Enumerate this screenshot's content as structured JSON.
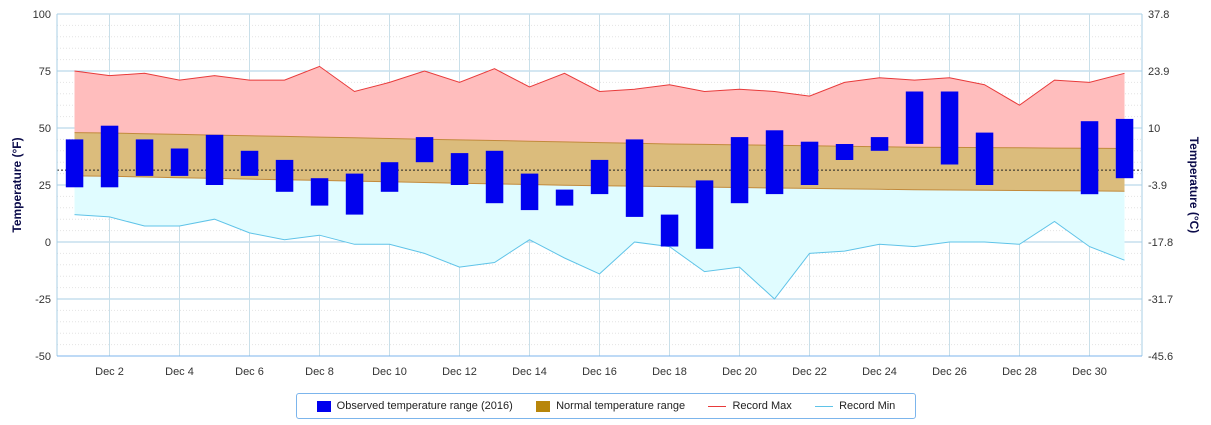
{
  "chart_data": {
    "type": "range-bar-band",
    "axes": {
      "left": {
        "title": "Temperature (°F)",
        "min": -50,
        "max": 100,
        "ticks": [
          100,
          75,
          50,
          25,
          0,
          -25,
          -50
        ]
      },
      "right": {
        "title": "Temperature (°C)",
        "min": -45.6,
        "max": 37.8,
        "tick_labels": [
          "37.8",
          "23.9",
          "10",
          "-3.9",
          "-17.8",
          "-31.7",
          "-45.6"
        ]
      },
      "x_tick_labels": [
        "Dec 2",
        "Dec 4",
        "Dec 6",
        "Dec 8",
        "Dec 10",
        "Dec 12",
        "Dec 14",
        "Dec 16",
        "Dec 18",
        "Dec 20",
        "Dec 22",
        "Dec 24",
        "Dec 26",
        "Dec 28",
        "Dec 30"
      ],
      "x_tick_days": [
        2,
        4,
        6,
        8,
        10,
        12,
        14,
        16,
        18,
        20,
        22,
        24,
        26,
        28,
        30
      ],
      "x_range_days": [
        0.5,
        31.5
      ],
      "grid": true
    },
    "days": [
      1,
      2,
      3,
      4,
      5,
      6,
      7,
      8,
      9,
      10,
      11,
      12,
      13,
      14,
      15,
      16,
      17,
      18,
      19,
      20,
      21,
      22,
      23,
      24,
      25,
      26,
      27,
      28,
      29,
      30,
      31
    ],
    "series": [
      {
        "name": "Observed temperature range (2016)",
        "color": "#0000ee",
        "low": [
          24,
          24,
          29,
          29,
          25,
          29,
          22,
          16,
          12,
          22,
          35,
          25,
          17,
          14,
          16,
          21,
          11,
          -2,
          -3,
          17,
          21,
          25,
          36,
          40,
          43,
          34,
          25,
          null,
          null,
          21,
          28
        ],
        "high": [
          45,
          51,
          45,
          41,
          47,
          40,
          36,
          28,
          30,
          35,
          46,
          39,
          40,
          30,
          23,
          36,
          45,
          12,
          27,
          46,
          49,
          44,
          43,
          46,
          66,
          66,
          48,
          null,
          null,
          53,
          54
        ]
      },
      {
        "name": "Normal temperature range",
        "color": "#b8860b",
        "low": [
          29,
          28.8,
          28.5,
          28.2,
          27.9,
          27.6,
          27.3,
          27,
          26.7,
          26.4,
          26.1,
          25.8,
          25.5,
          25.2,
          24.9,
          24.7,
          24.5,
          24.3,
          24.1,
          23.9,
          23.7,
          23.5,
          23.3,
          23.1,
          22.9,
          22.8,
          22.7,
          22.6,
          22.5,
          22.4,
          22.3
        ],
        "high": [
          48,
          47.8,
          47.5,
          47.2,
          46.9,
          46.6,
          46.3,
          46,
          45.7,
          45.4,
          45.1,
          44.8,
          44.5,
          44.2,
          43.9,
          43.6,
          43.3,
          43,
          42.8,
          42.6,
          42.4,
          42.2,
          42,
          41.8,
          41.6,
          41.5,
          41.4,
          41.3,
          41.2,
          41.1,
          41
        ]
      },
      {
        "name": "Record Max",
        "color": "#e83a3a",
        "values": [
          75,
          73,
          74,
          71,
          73,
          71,
          71,
          77,
          66,
          70,
          75,
          70,
          76,
          68,
          74,
          66,
          67,
          69,
          66,
          67,
          66,
          64,
          70,
          72,
          71,
          72,
          69,
          60,
          71,
          70,
          74
        ]
      },
      {
        "name": "Record Min",
        "color": "#5fc3e8",
        "values": [
          12,
          11,
          7,
          7,
          10,
          4,
          1,
          3,
          -1,
          -1,
          -5,
          -11,
          -9,
          1,
          -7,
          -14,
          0,
          -2,
          -13,
          -11,
          -25,
          -5,
          -4,
          -1,
          -2,
          0,
          0,
          -1,
          9,
          -2,
          -8
        ]
      }
    ],
    "reference_line": {
      "value": 31.5,
      "style": "dashed"
    },
    "legend_position": "bottom-center"
  },
  "legend": {
    "items": [
      {
        "label": "Observed temperature range (2016)",
        "color": "#0000ee",
        "kind": "box"
      },
      {
        "label": "Normal temperature range",
        "color": "#b8860b",
        "kind": "box"
      },
      {
        "label": "Record Max",
        "color": "#e83a3a",
        "kind": "line"
      },
      {
        "label": "Record Min",
        "color": "#5fc3e8",
        "kind": "line"
      }
    ]
  }
}
